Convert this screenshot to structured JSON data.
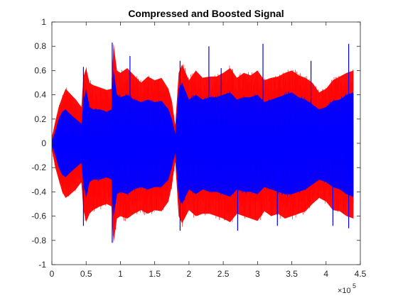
{
  "chart_data": {
    "type": "line",
    "title": "Compressed and Boosted Signal",
    "xlabel": "",
    "ylabel": "",
    "xlim": [
      0,
      450000
    ],
    "ylim": [
      -1,
      1
    ],
    "xticks": [
      0,
      50000,
      100000,
      150000,
      200000,
      250000,
      300000,
      350000,
      400000,
      450000
    ],
    "xtick_labels": [
      "0",
      "0.5",
      "1",
      "1.5",
      "2",
      "2.5",
      "3",
      "3.5",
      "4",
      "4.5"
    ],
    "x_exponent": {
      "base": "×10",
      "power": "5"
    },
    "yticks": [
      -1,
      -0.8,
      -0.6,
      -0.4,
      -0.2,
      0,
      0.2,
      0.4,
      0.6,
      0.8,
      1
    ],
    "ytick_labels": [
      "-1",
      "-0.8",
      "-0.6",
      "-0.4",
      "-0.2",
      "0",
      "0.2",
      "0.4",
      "0.6",
      "0.8",
      "1"
    ],
    "grid": false,
    "series": [
      {
        "color": "#ff0000",
        "x": [
          0,
          5000,
          10000,
          15000,
          20000,
          25000,
          35000,
          43000,
          46000,
          50000,
          55000,
          60000,
          70000,
          80000,
          87000,
          90000,
          95000,
          100000,
          110000,
          120000,
          130000,
          140000,
          150000,
          160000,
          170000,
          175000,
          180000,
          185000,
          190000,
          200000,
          210000,
          220000,
          230000,
          240000,
          250000,
          260000,
          270000,
          280000,
          290000,
          300000,
          310000,
          320000,
          330000,
          340000,
          350000,
          360000,
          370000,
          380000,
          390000,
          400000,
          410000,
          420000,
          430000,
          440000
        ],
        "upper": [
          0.05,
          0.18,
          0.3,
          0.38,
          0.45,
          0.42,
          0.36,
          0.3,
          0.55,
          0.62,
          0.5,
          0.48,
          0.46,
          0.44,
          0.45,
          0.82,
          0.6,
          0.58,
          0.62,
          0.56,
          0.5,
          0.55,
          0.52,
          0.54,
          0.45,
          0.35,
          0.15,
          0.58,
          0.65,
          0.52,
          0.6,
          0.54,
          0.55,
          0.55,
          0.58,
          0.62,
          0.54,
          0.58,
          0.56,
          0.6,
          0.52,
          0.54,
          0.55,
          0.58,
          0.6,
          0.56,
          0.54,
          0.5,
          0.42,
          0.45,
          0.52,
          0.55,
          0.58,
          0.6
        ],
        "lower": [
          -0.05,
          -0.2,
          -0.3,
          -0.4,
          -0.45,
          -0.43,
          -0.38,
          -0.32,
          -0.55,
          -0.65,
          -0.58,
          -0.55,
          -0.52,
          -0.5,
          -0.52,
          -0.82,
          -0.62,
          -0.6,
          -0.62,
          -0.58,
          -0.55,
          -0.58,
          -0.55,
          -0.56,
          -0.48,
          -0.35,
          -0.15,
          -0.6,
          -0.66,
          -0.55,
          -0.6,
          -0.58,
          -0.58,
          -0.6,
          -0.62,
          -0.65,
          -0.58,
          -0.6,
          -0.62,
          -0.64,
          -0.56,
          -0.6,
          -0.58,
          -0.62,
          -0.6,
          -0.58,
          -0.56,
          -0.5,
          -0.45,
          -0.48,
          -0.55,
          -0.56,
          -0.6,
          -0.62
        ]
      },
      {
        "color": "#0000ff",
        "x": [
          0,
          5000,
          10000,
          15000,
          20000,
          25000,
          35000,
          43000,
          46000,
          50000,
          55000,
          60000,
          70000,
          80000,
          87000,
          90000,
          95000,
          100000,
          110000,
          120000,
          130000,
          140000,
          150000,
          160000,
          170000,
          175000,
          180000,
          185000,
          190000,
          200000,
          210000,
          220000,
          230000,
          240000,
          250000,
          260000,
          270000,
          280000,
          290000,
          300000,
          310000,
          320000,
          330000,
          340000,
          350000,
          360000,
          370000,
          380000,
          390000,
          400000,
          410000,
          420000,
          430000,
          440000
        ],
        "upper": [
          0.02,
          0.1,
          0.2,
          0.26,
          0.28,
          0.25,
          0.2,
          0.16,
          0.35,
          0.45,
          0.3,
          0.28,
          0.28,
          0.26,
          0.28,
          0.6,
          0.4,
          0.38,
          0.4,
          0.36,
          0.34,
          0.36,
          0.34,
          0.35,
          0.28,
          0.2,
          0.08,
          0.45,
          0.5,
          0.36,
          0.4,
          0.36,
          0.38,
          0.38,
          0.4,
          0.42,
          0.36,
          0.38,
          0.38,
          0.4,
          0.34,
          0.36,
          0.38,
          0.4,
          0.42,
          0.38,
          0.36,
          0.32,
          0.28,
          0.3,
          0.35,
          0.36,
          0.4,
          0.42
        ],
        "lower": [
          -0.02,
          -0.1,
          -0.2,
          -0.26,
          -0.28,
          -0.25,
          -0.2,
          -0.16,
          -0.35,
          -0.45,
          -0.32,
          -0.3,
          -0.3,
          -0.28,
          -0.3,
          -0.6,
          -0.42,
          -0.4,
          -0.42,
          -0.38,
          -0.36,
          -0.38,
          -0.36,
          -0.36,
          -0.3,
          -0.2,
          -0.08,
          -0.45,
          -0.5,
          -0.38,
          -0.42,
          -0.38,
          -0.4,
          -0.4,
          -0.42,
          -0.44,
          -0.38,
          -0.4,
          -0.4,
          -0.42,
          -0.36,
          -0.38,
          -0.4,
          -0.42,
          -0.42,
          -0.4,
          -0.38,
          -0.34,
          -0.3,
          -0.32,
          -0.36,
          -0.38,
          -0.42,
          -0.44
        ]
      }
    ],
    "peaks": [
      {
        "x": 46000,
        "y": 0.63
      },
      {
        "x": 88000,
        "y": 0.83
      },
      {
        "x": 114000,
        "y": 0.72
      },
      {
        "x": 187000,
        "y": 0.68
      },
      {
        "x": 229000,
        "y": 0.8
      },
      {
        "x": 247000,
        "y": 0.62
      },
      {
        "x": 308000,
        "y": 0.82
      },
      {
        "x": 378000,
        "y": 0.68
      },
      {
        "x": 433000,
        "y": 0.82
      },
      {
        "x": 46000,
        "y": -0.68
      },
      {
        "x": 88000,
        "y": -0.82
      },
      {
        "x": 187000,
        "y": -0.72
      },
      {
        "x": 271000,
        "y": -0.72
      },
      {
        "x": 329000,
        "y": -0.68
      },
      {
        "x": 410000,
        "y": -0.68
      },
      {
        "x": 433000,
        "y": -0.7
      }
    ]
  }
}
